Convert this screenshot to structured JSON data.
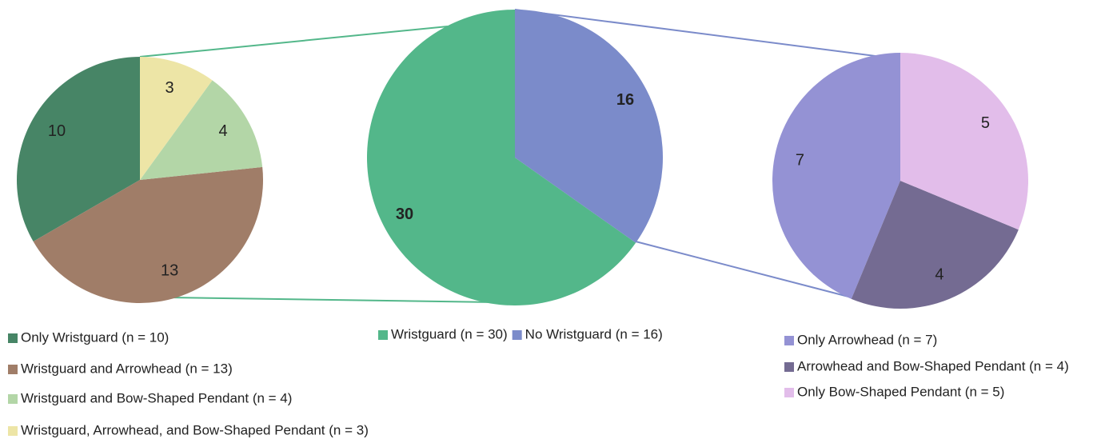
{
  "chart_data": [
    {
      "type": "pie",
      "categories": [
        "Only Wristguard (n = 10)",
        "Wristguard and Arrowhead (n = 13)",
        "Wristguard and Bow-Shaped Pendant (n = 4)",
        "Wristguard, Arrowhead, and Bow-Shaped Pendant (n = 3)"
      ],
      "values": [
        10,
        13,
        4,
        3
      ],
      "colors": [
        "#478566",
        "#a07d68",
        "#b3d6a7",
        "#ede5a6"
      ]
    },
    {
      "type": "pie",
      "categories": [
        "Wristguard (n = 30)",
        "No Wristguard (n = 16)"
      ],
      "values": [
        30,
        16
      ],
      "colors": [
        "#53b78a",
        "#7b8bca"
      ]
    },
    {
      "type": "pie",
      "categories": [
        "Only Arrowhead (n = 7)",
        "Arrowhead and Bow-Shaped Pendant (n = 4)",
        "Only Bow-Shaped Pendant (n = 5)"
      ],
      "values": [
        7,
        4,
        5
      ],
      "colors": [
        "#9492d4",
        "#746b92",
        "#e2bdea"
      ]
    }
  ]
}
